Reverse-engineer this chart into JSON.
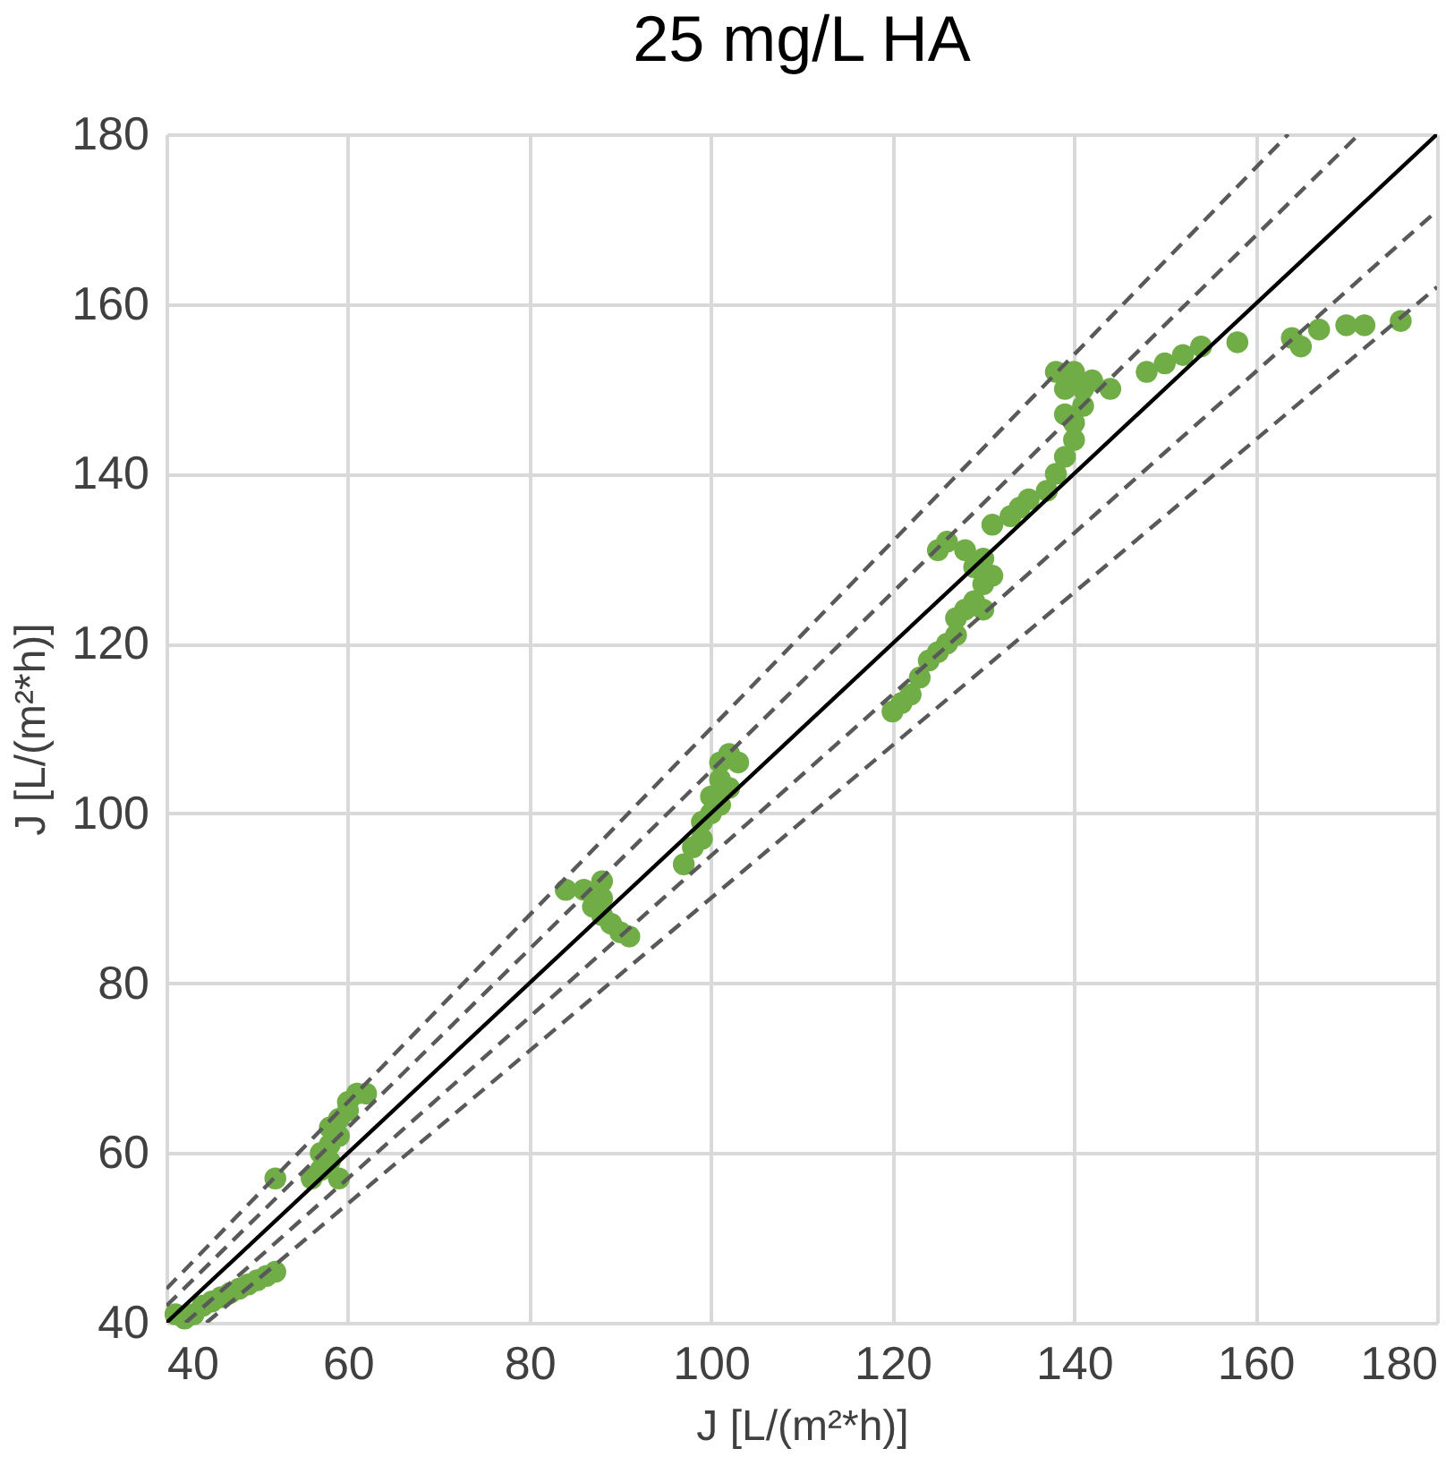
{
  "chart_data": {
    "type": "scatter",
    "title": "25 mg/L HA",
    "xlabel": "J [L/(m²*h)]",
    "ylabel": "J [L/(m²*h)]",
    "xlim": [
      40,
      180
    ],
    "ylim": [
      40,
      180
    ],
    "xticks": [
      40,
      60,
      80,
      100,
      120,
      140,
      160,
      180
    ],
    "yticks": [
      40,
      60,
      80,
      100,
      120,
      140,
      160,
      180
    ],
    "grid": true,
    "series": [
      {
        "marker": "circle",
        "color": "#70ad47",
        "x": [
          41,
          42,
          43,
          44,
          45,
          46,
          47,
          48,
          49,
          50,
          51,
          52,
          52,
          56,
          57,
          57,
          58,
          58,
          59,
          59,
          60,
          60,
          61,
          62,
          58,
          59,
          84,
          86,
          88,
          88,
          88,
          89,
          90,
          91,
          87,
          97,
          98,
          99,
          99,
          100,
          100,
          101,
          101,
          102,
          103,
          101,
          102,
          120,
          121,
          122,
          123,
          124,
          125,
          126,
          127,
          127,
          128,
          129,
          130,
          131,
          130,
          128,
          126,
          125,
          129,
          130,
          131,
          133,
          134,
          135,
          137,
          138,
          139,
          140,
          140,
          141,
          139,
          138,
          140,
          142,
          144,
          141,
          139,
          148,
          150,
          152,
          154,
          158,
          164,
          165,
          167,
          170,
          172,
          176
        ],
        "values": [
          41,
          40.5,
          41,
          42,
          42.5,
          43,
          43.5,
          44,
          44.5,
          45,
          45.5,
          46,
          57,
          57,
          58,
          60,
          61,
          63,
          62,
          64,
          65,
          66,
          67,
          67,
          59,
          57,
          91,
          91,
          92,
          90,
          88,
          87,
          86,
          85.5,
          89,
          94,
          96,
          97,
          99,
          100,
          102,
          104,
          106,
          107,
          106,
          101,
          103,
          112,
          113,
          114,
          116,
          118,
          119,
          120,
          121,
          123,
          124,
          125,
          127,
          128,
          130,
          131,
          132,
          131,
          129,
          124,
          134,
          135,
          136,
          137,
          138,
          140,
          142,
          144,
          146,
          148,
          150,
          152,
          152,
          151,
          150,
          150,
          147,
          152,
          153,
          154,
          155,
          155.5,
          156,
          155,
          157,
          157.5,
          157.5,
          158
        ]
      },
      {
        "type": "line",
        "marker": "none",
        "color": "#000000",
        "line_style": "solid",
        "x": [
          40,
          180
        ],
        "values": [
          40,
          180
        ]
      },
      {
        "type": "line",
        "marker": "none",
        "color": "#595959",
        "line_style": "dashed",
        "x": [
          40,
          171.4
        ],
        "values": [
          42,
          180
        ]
      },
      {
        "type": "line",
        "marker": "none",
        "color": "#595959",
        "line_style": "dashed",
        "x": [
          42.1,
          180
        ],
        "values": [
          40,
          171
        ]
      },
      {
        "type": "line",
        "marker": "none",
        "color": "#595959",
        "line_style": "dashed",
        "x": [
          40,
          163.6
        ],
        "values": [
          44,
          180
        ]
      },
      {
        "type": "line",
        "marker": "none",
        "color": "#595959",
        "line_style": "dashed",
        "x": [
          44.4,
          180
        ],
        "values": [
          40,
          162
        ]
      }
    ]
  }
}
